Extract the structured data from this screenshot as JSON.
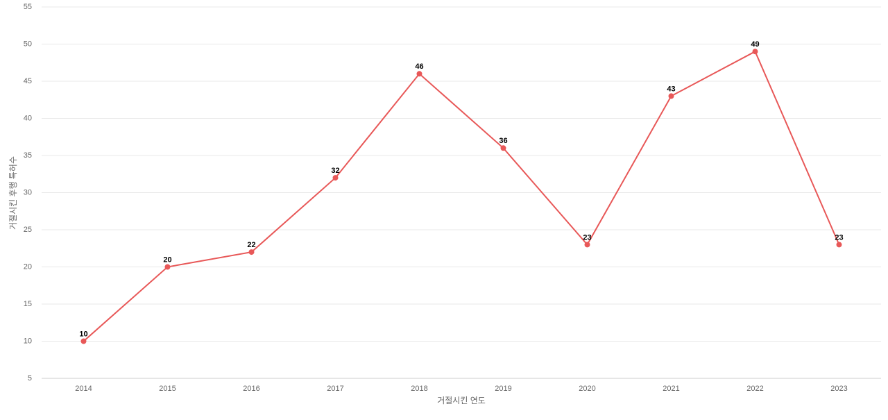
{
  "chart_data": {
    "type": "line",
    "x_label": "거절시킨 연도",
    "y_label": "거절시킨 후행 특허수",
    "categories": [
      "2014",
      "2015",
      "2016",
      "2017",
      "2018",
      "2019",
      "2020",
      "2021",
      "2022",
      "2023"
    ],
    "series": [
      {
        "color": "#e85858",
        "values": [
          10,
          20,
          22,
          32,
          46,
          36,
          23,
          43,
          49,
          23
        ]
      }
    ],
    "ylim": [
      5,
      55
    ],
    "yticks": [
      5,
      10,
      15,
      20,
      25,
      30,
      35,
      40,
      45,
      50,
      55
    ],
    "grid": true
  }
}
